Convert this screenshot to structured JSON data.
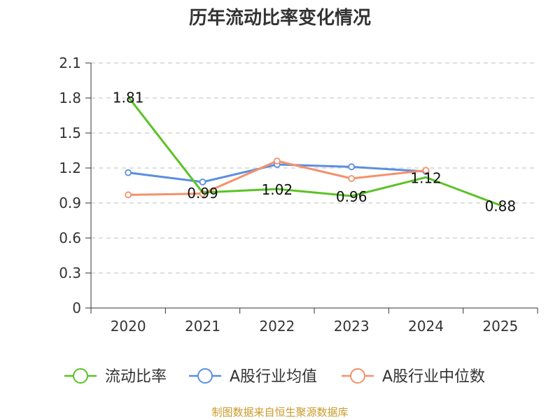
{
  "chart_data": {
    "type": "line",
    "title": "历年流动比率变化情况",
    "categories": [
      "2020",
      "2021",
      "2022",
      "2023",
      "2024",
      "2025"
    ],
    "ylim": [
      0,
      2.1
    ],
    "yticks": [
      "0",
      "0.3",
      "0.6",
      "0.9",
      "1.2",
      "1.5",
      "1.8",
      "2.1"
    ],
    "ytick_values": [
      0,
      0.3,
      0.6,
      0.9,
      1.2,
      1.5,
      1.8,
      2.1
    ],
    "grid": true,
    "legend_position": "bottom",
    "series": [
      {
        "name": "流动比率",
        "color": "#5cc226",
        "values": [
          1.81,
          0.99,
          1.02,
          0.96,
          1.12,
          0.88
        ],
        "labels": [
          "1.81",
          "0.99",
          "1.02",
          "0.96",
          "1.12",
          "0.88"
        ]
      },
      {
        "name": "A股行业均值",
        "color": "#5b8ee0",
        "values": [
          1.16,
          1.08,
          1.23,
          1.21,
          1.17,
          null
        ]
      },
      {
        "name": "A股行业中位数",
        "color": "#f4916a",
        "values": [
          0.97,
          0.98,
          1.26,
          1.11,
          1.18,
          null
        ]
      }
    ]
  },
  "source": "制图数据来自恒生聚源数据库"
}
